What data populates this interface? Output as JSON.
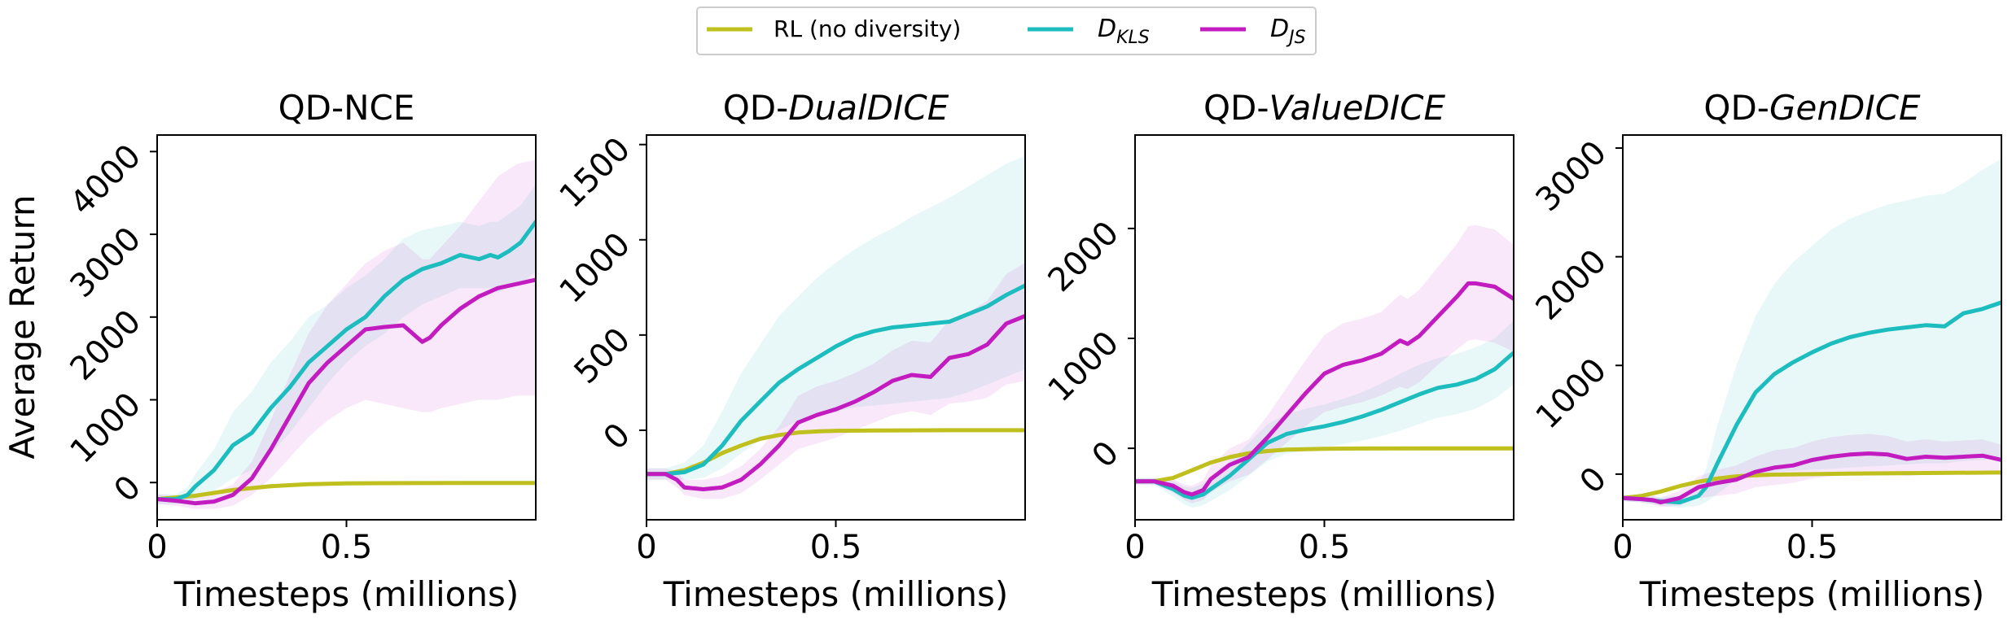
{
  "legend": {
    "entries": [
      {
        "key": "rl",
        "label": "RL (no diversity)",
        "color": "#bfbf1e"
      },
      {
        "key": "dkls",
        "label_main": "D",
        "label_sub": "KLS",
        "color": "#1cbcbf"
      },
      {
        "key": "djs",
        "label_main": "D",
        "label_sub": "JS",
        "color": "#c21cc0"
      }
    ]
  },
  "shared": {
    "ylabel": "Average Return",
    "xlabel": "Timesteps (millions)"
  },
  "chart_data": [
    {
      "type": "line",
      "title_prefix": "QD-NCE",
      "title_italic": "",
      "xlim": [
        0,
        1.0
      ],
      "ylim": [
        -450,
        4200
      ],
      "xticks": [
        {
          "v": 0,
          "label": "0"
        },
        {
          "v": 0.5,
          "label": "0.5"
        }
      ],
      "yticks": [
        {
          "v": 0,
          "label": "0"
        },
        {
          "v": 1000,
          "label": "1000"
        },
        {
          "v": 2000,
          "label": "2000"
        },
        {
          "v": 3000,
          "label": "3000"
        },
        {
          "v": 4000,
          "label": "4000"
        }
      ],
      "series": [
        {
          "key": "rl",
          "x": [
            0,
            0.1,
            0.2,
            0.3,
            0.4,
            0.5,
            0.6,
            0.8,
            1.0
          ],
          "y": [
            -200,
            -160,
            -90,
            -45,
            -20,
            -10,
            -8,
            -5,
            -5
          ]
        },
        {
          "key": "dkls",
          "x": [
            0,
            0.05,
            0.08,
            0.1,
            0.15,
            0.2,
            0.25,
            0.3,
            0.35,
            0.4,
            0.45,
            0.5,
            0.55,
            0.6,
            0.65,
            0.7,
            0.75,
            0.8,
            0.85,
            0.88,
            0.9,
            0.93,
            0.96,
            1.0
          ],
          "y": [
            -200,
            -200,
            -150,
            -50,
            150,
            450,
            600,
            900,
            1150,
            1450,
            1650,
            1850,
            2000,
            2250,
            2450,
            2580,
            2650,
            2750,
            2700,
            2750,
            2720,
            2800,
            2900,
            3150
          ],
          "lower": [
            -260,
            -260,
            -250,
            -200,
            -100,
            50,
            150,
            350,
            600,
            900,
            1200,
            1450,
            1650,
            1800,
            2000,
            2150,
            2250,
            2350,
            2350,
            2350,
            2300,
            2350,
            2400,
            2550
          ],
          "upper": [
            -140,
            -140,
            -60,
            100,
            400,
            850,
            1100,
            1450,
            1700,
            2000,
            2150,
            2350,
            2500,
            2700,
            2950,
            3050,
            3100,
            3150,
            3100,
            3150,
            3150,
            3250,
            3350,
            3600
          ]
        },
        {
          "key": "djs",
          "x": [
            0,
            0.05,
            0.1,
            0.15,
            0.2,
            0.25,
            0.3,
            0.35,
            0.4,
            0.45,
            0.5,
            0.55,
            0.6,
            0.65,
            0.7,
            0.72,
            0.75,
            0.8,
            0.85,
            0.9,
            0.95,
            1.0
          ],
          "y": [
            -200,
            -220,
            -250,
            -230,
            -150,
            50,
            400,
            800,
            1200,
            1450,
            1650,
            1850,
            1880,
            1900,
            1700,
            1750,
            1900,
            2100,
            2250,
            2350,
            2400,
            2450
          ],
          "lower": [
            -260,
            -280,
            -320,
            -320,
            -280,
            -150,
            50,
            300,
            550,
            750,
            900,
            1000,
            950,
            900,
            850,
            850,
            900,
            950,
            1000,
            1000,
            1050,
            1050
          ],
          "upper": [
            -140,
            -160,
            -180,
            -130,
            -20,
            250,
            750,
            1300,
            1800,
            2150,
            2400,
            2650,
            2800,
            2900,
            2700,
            2700,
            2850,
            3100,
            3400,
            3700,
            3850,
            3900
          ]
        }
      ]
    },
    {
      "type": "line",
      "title_prefix": "QD-",
      "title_italic": "DualDICE",
      "xlim": [
        0,
        1.0
      ],
      "ylim": [
        -470,
        1550
      ],
      "xticks": [
        {
          "v": 0,
          "label": "0"
        },
        {
          "v": 0.5,
          "label": "0.5"
        }
      ],
      "yticks": [
        {
          "v": 0,
          "label": "0"
        },
        {
          "v": 500,
          "label": "500"
        },
        {
          "v": 1000,
          "label": "1000"
        },
        {
          "v": 1500,
          "label": "1500"
        }
      ],
      "series": [
        {
          "key": "rl",
          "x": [
            0,
            0.05,
            0.1,
            0.15,
            0.2,
            0.25,
            0.3,
            0.35,
            0.4,
            0.45,
            0.5,
            0.6,
            0.8,
            1.0
          ],
          "y": [
            -230,
            -230,
            -210,
            -170,
            -120,
            -80,
            -45,
            -25,
            -12,
            -6,
            -3,
            -1,
            0,
            0
          ]
        },
        {
          "key": "dkls",
          "x": [
            0,
            0.05,
            0.1,
            0.15,
            0.2,
            0.25,
            0.3,
            0.35,
            0.4,
            0.45,
            0.5,
            0.55,
            0.6,
            0.65,
            0.7,
            0.75,
            0.8,
            0.85,
            0.9,
            0.95,
            1.0
          ],
          "y": [
            -230,
            -230,
            -220,
            -180,
            -80,
            50,
            150,
            250,
            320,
            380,
            440,
            490,
            520,
            540,
            550,
            560,
            570,
            610,
            650,
            710,
            760
          ],
          "lower": [
            -260,
            -260,
            -260,
            -250,
            -200,
            -120,
            -50,
            0,
            50,
            80,
            100,
            120,
            130,
            140,
            150,
            160,
            170,
            200,
            240,
            280,
            320
          ],
          "upper": [
            -200,
            -200,
            -170,
            -80,
            100,
            300,
            450,
            600,
            700,
            800,
            880,
            950,
            1010,
            1060,
            1120,
            1170,
            1220,
            1280,
            1340,
            1400,
            1440
          ]
        },
        {
          "key": "djs",
          "x": [
            0,
            0.05,
            0.08,
            0.1,
            0.15,
            0.2,
            0.25,
            0.3,
            0.35,
            0.4,
            0.45,
            0.5,
            0.55,
            0.6,
            0.65,
            0.7,
            0.75,
            0.8,
            0.85,
            0.9,
            0.95,
            1.0
          ],
          "y": [
            -230,
            -230,
            -260,
            -300,
            -310,
            -300,
            -260,
            -180,
            -80,
            40,
            80,
            110,
            150,
            200,
            260,
            290,
            280,
            380,
            400,
            450,
            560,
            600
          ],
          "lower": [
            -260,
            -260,
            -300,
            -340,
            -360,
            -360,
            -330,
            -260,
            -180,
            -100,
            -70,
            -40,
            0,
            40,
            80,
            100,
            80,
            140,
            150,
            170,
            240,
            260
          ],
          "upper": [
            -200,
            -200,
            -220,
            -260,
            -260,
            -240,
            -190,
            -100,
            20,
            180,
            230,
            260,
            300,
            350,
            420,
            470,
            460,
            580,
            620,
            680,
            820,
            880
          ]
        }
      ]
    },
    {
      "type": "line",
      "title_prefix": "QD-",
      "title_italic": "ValueDICE",
      "xlim": [
        0,
        1.0
      ],
      "ylim": [
        -650,
        2850
      ],
      "xticks": [
        {
          "v": 0,
          "label": "0"
        },
        {
          "v": 0.5,
          "label": "0.5"
        }
      ],
      "yticks": [
        {
          "v": 0,
          "label": "0"
        },
        {
          "v": 1000,
          "label": "1000"
        },
        {
          "v": 2000,
          "label": "2000"
        }
      ],
      "series": [
        {
          "key": "rl",
          "x": [
            0,
            0.05,
            0.1,
            0.15,
            0.2,
            0.25,
            0.3,
            0.35,
            0.4,
            0.5,
            0.6,
            0.8,
            1.0
          ],
          "y": [
            -300,
            -300,
            -270,
            -200,
            -130,
            -80,
            -45,
            -25,
            -12,
            -4,
            -2,
            0,
            0
          ]
        },
        {
          "key": "dkls",
          "x": [
            0,
            0.05,
            0.1,
            0.13,
            0.15,
            0.18,
            0.2,
            0.25,
            0.3,
            0.35,
            0.4,
            0.45,
            0.5,
            0.55,
            0.6,
            0.65,
            0.7,
            0.75,
            0.8,
            0.85,
            0.9,
            0.95,
            1.0
          ],
          "y": [
            -300,
            -300,
            -370,
            -430,
            -450,
            -420,
            -370,
            -250,
            -100,
            50,
            130,
            170,
            200,
            240,
            290,
            350,
            420,
            490,
            550,
            580,
            630,
            720,
            870
          ],
          "lower": [
            -330,
            -330,
            -440,
            -510,
            -540,
            -520,
            -480,
            -380,
            -250,
            -120,
            -50,
            -20,
            10,
            40,
            70,
            110,
            160,
            220,
            280,
            310,
            360,
            450,
            580
          ],
          "upper": [
            -270,
            -270,
            -300,
            -350,
            -360,
            -320,
            -260,
            -120,
            50,
            220,
            310,
            360,
            400,
            450,
            510,
            590,
            680,
            760,
            820,
            860,
            920,
            1000,
            1160
          ]
        },
        {
          "key": "djs",
          "x": [
            0,
            0.05,
            0.1,
            0.13,
            0.15,
            0.18,
            0.2,
            0.25,
            0.3,
            0.35,
            0.4,
            0.45,
            0.5,
            0.55,
            0.6,
            0.65,
            0.7,
            0.72,
            0.75,
            0.8,
            0.85,
            0.88,
            0.9,
            0.95,
            1.0
          ],
          "y": [
            -300,
            -300,
            -340,
            -400,
            -420,
            -380,
            -280,
            -150,
            -80,
            100,
            300,
            500,
            680,
            760,
            800,
            860,
            980,
            950,
            1020,
            1200,
            1380,
            1500,
            1500,
            1470,
            1360
          ],
          "lower": [
            -330,
            -330,
            -400,
            -470,
            -500,
            -470,
            -400,
            -300,
            -240,
            -100,
            50,
            200,
            330,
            380,
            420,
            480,
            560,
            540,
            600,
            760,
            900,
            980,
            990,
            960,
            880
          ],
          "upper": [
            -270,
            -270,
            -280,
            -330,
            -340,
            -290,
            -160,
            0,
            80,
            300,
            550,
            800,
            1030,
            1140,
            1180,
            1240,
            1400,
            1360,
            1440,
            1650,
            1860,
            2020,
            2030,
            1990,
            1850
          ]
        }
      ]
    },
    {
      "type": "line",
      "title_prefix": "QD-",
      "title_italic": "GenDICE",
      "xlim": [
        0,
        1.0
      ],
      "ylim": [
        -420,
        3120
      ],
      "xticks": [
        {
          "v": 0,
          "label": "0"
        },
        {
          "v": 0.5,
          "label": "0.5"
        }
      ],
      "yticks": [
        {
          "v": 0,
          "label": "0"
        },
        {
          "v": 1000,
          "label": "1000"
        },
        {
          "v": 2000,
          "label": "2000"
        },
        {
          "v": 3000,
          "label": "3000"
        }
      ],
      "series": [
        {
          "key": "rl",
          "x": [
            0,
            0.05,
            0.1,
            0.15,
            0.2,
            0.25,
            0.3,
            0.35,
            0.4,
            0.5,
            0.6,
            0.8,
            1.0
          ],
          "y": [
            -220,
            -200,
            -160,
            -110,
            -70,
            -40,
            -20,
            -10,
            -5,
            0,
            5,
            10,
            15
          ]
        },
        {
          "key": "dkls",
          "x": [
            0,
            0.05,
            0.1,
            0.15,
            0.2,
            0.22,
            0.25,
            0.3,
            0.35,
            0.4,
            0.45,
            0.5,
            0.55,
            0.6,
            0.65,
            0.7,
            0.75,
            0.8,
            0.85,
            0.9,
            0.95,
            1.0
          ],
          "y": [
            -220,
            -230,
            -250,
            -260,
            -200,
            -120,
            100,
            450,
            750,
            920,
            1030,
            1120,
            1200,
            1260,
            1300,
            1330,
            1350,
            1370,
            1360,
            1480,
            1520,
            1580
          ],
          "lower": [
            -250,
            -260,
            -290,
            -310,
            -290,
            -260,
            -180,
            -50,
            0,
            20,
            30,
            40,
            50,
            60,
            70,
            80,
            90,
            100,
            100,
            120,
            130,
            150
          ],
          "upper": [
            -190,
            -200,
            -210,
            -200,
            -100,
            50,
            450,
            1000,
            1450,
            1750,
            1950,
            2100,
            2250,
            2350,
            2420,
            2480,
            2520,
            2560,
            2580,
            2680,
            2800,
            2900
          ]
        },
        {
          "key": "djs",
          "x": [
            0,
            0.05,
            0.08,
            0.1,
            0.15,
            0.2,
            0.25,
            0.3,
            0.35,
            0.4,
            0.45,
            0.5,
            0.55,
            0.6,
            0.65,
            0.7,
            0.75,
            0.8,
            0.85,
            0.9,
            0.95,
            1.0
          ],
          "y": [
            -220,
            -230,
            -240,
            -260,
            -220,
            -120,
            -80,
            -50,
            20,
            60,
            80,
            130,
            160,
            180,
            190,
            180,
            140,
            160,
            150,
            160,
            170,
            130
          ],
          "lower": [
            -250,
            -260,
            -280,
            -300,
            -290,
            -220,
            -200,
            -180,
            -120,
            -100,
            -80,
            -40,
            -20,
            0,
            10,
            10,
            -20,
            0,
            0,
            10,
            20,
            -10
          ],
          "upper": [
            -190,
            -200,
            -200,
            -220,
            -150,
            -20,
            40,
            80,
            160,
            220,
            240,
            300,
            340,
            360,
            370,
            350,
            300,
            320,
            300,
            310,
            320,
            270
          ]
        }
      ]
    }
  ]
}
